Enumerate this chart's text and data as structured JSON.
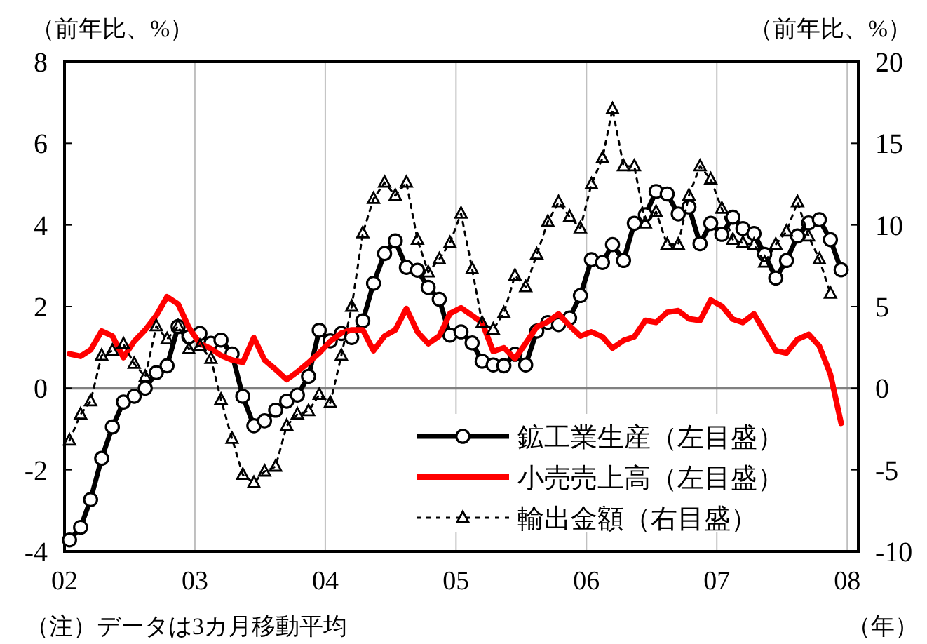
{
  "chart_data": {
    "type": "line",
    "ylabel": "（前年比、%）",
    "y2label": "（前年比、%）",
    "xlabel": "（年）",
    "annotations": [
      "（注）データは3カ月移動平均"
    ],
    "x": [
      "2002-01-15",
      "2002-02-15",
      "2002-03-15",
      "2002-04-15",
      "2002-05-15",
      "2002-06-15",
      "2002-07-15",
      "2002-08-15",
      "2002-09-15",
      "2002-10-15",
      "2002-11-15",
      "2002-12-15",
      "2003-01-15",
      "2003-02-15",
      "2003-03-15",
      "2003-04-15",
      "2003-05-15",
      "2003-06-15",
      "2003-07-15",
      "2003-08-15",
      "2003-09-15",
      "2003-10-15",
      "2003-11-15",
      "2003-12-15",
      "2004-01-15",
      "2004-02-15",
      "2004-03-15",
      "2004-04-15",
      "2004-05-15",
      "2004-06-15",
      "2004-07-15",
      "2004-08-15",
      "2004-09-15",
      "2004-10-15",
      "2004-11-15",
      "2004-12-15",
      "2005-01-15",
      "2005-02-15",
      "2005-03-15",
      "2005-04-15",
      "2005-05-15",
      "2005-06-15",
      "2005-07-15",
      "2005-08-15",
      "2005-09-15",
      "2005-10-15",
      "2005-11-15",
      "2005-12-15",
      "2006-01-15",
      "2006-02-15",
      "2006-03-15",
      "2006-04-15",
      "2006-05-15",
      "2006-06-15",
      "2006-07-15",
      "2006-08-15",
      "2006-09-15",
      "2006-10-15",
      "2006-11-15",
      "2006-12-15",
      "2007-01-15",
      "2007-02-15",
      "2007-03-15",
      "2007-04-15",
      "2007-05-15",
      "2007-06-15",
      "2007-07-15",
      "2007-08-15",
      "2007-09-15",
      "2007-10-15",
      "2007-11-15",
      "2007-12-15"
    ],
    "xlim": [
      "2002-01-01",
      "2008-02-01"
    ],
    "xticks": [
      {
        "value": "2002-01-01",
        "label": "02"
      },
      {
        "value": "2003-01-01",
        "label": "03"
      },
      {
        "value": "2004-01-01",
        "label": "04"
      },
      {
        "value": "2005-01-01",
        "label": "05"
      },
      {
        "value": "2006-01-01",
        "label": "06"
      },
      {
        "value": "2007-01-01",
        "label": "07"
      },
      {
        "value": "2008-01-01",
        "label": "08"
      }
    ],
    "ylim": [
      -4,
      8
    ],
    "yticks": [
      -4,
      -2,
      0,
      2,
      4,
      6,
      8
    ],
    "y2lim": [
      -10,
      20
    ],
    "y2ticks": [
      -10,
      -5,
      0,
      5,
      10,
      15,
      20
    ],
    "grid": "x",
    "legend": "bottom right",
    "ref_lines": [
      {
        "axis": "y",
        "value": 0,
        "color": "#808080"
      }
    ],
    "series": [
      {
        "name": "鉱工業生産（左目盛）",
        "color": "#000000",
        "marker": "circle",
        "line_style": "solid",
        "values": [
          -3.72,
          -3.41,
          -2.73,
          -1.72,
          -0.95,
          -0.34,
          -0.2,
          0.0,
          0.38,
          0.55,
          1.51,
          1.26,
          1.34,
          1.1,
          1.18,
          0.84,
          -0.2,
          -0.92,
          -0.8,
          -0.54,
          -0.32,
          -0.17,
          0.29,
          1.42,
          1.16,
          1.34,
          1.24,
          1.65,
          2.57,
          3.3,
          3.61,
          2.96,
          2.89,
          2.47,
          2.18,
          1.3,
          1.38,
          1.11,
          0.66,
          0.57,
          0.55,
          0.83,
          0.57,
          1.4,
          1.61,
          1.56,
          1.72,
          2.27,
          3.15,
          3.08,
          3.52,
          3.13,
          4.04,
          4.25,
          4.82,
          4.76,
          4.27,
          4.44,
          3.54,
          4.04,
          3.77,
          4.19,
          3.91,
          3.79,
          3.28,
          2.7,
          3.13,
          3.73,
          4.05,
          4.13,
          3.64,
          2.9
        ]
      },
      {
        "name": "小売売上高（左目盛）",
        "color": "#ff0000",
        "marker": "none",
        "line_style": "solid",
        "values": [
          0.84,
          0.78,
          0.94,
          1.4,
          1.28,
          0.75,
          1.15,
          1.43,
          1.78,
          2.24,
          2.06,
          1.49,
          1.09,
          0.97,
          0.8,
          0.69,
          0.63,
          1.24,
          0.69,
          0.46,
          0.21,
          0.4,
          0.63,
          0.86,
          1.15,
          1.35,
          1.43,
          1.43,
          0.92,
          1.28,
          1.43,
          1.95,
          1.38,
          1.09,
          1.28,
          1.83,
          1.97,
          1.78,
          1.61,
          0.9,
          0.99,
          0.72,
          1.1,
          1.5,
          1.63,
          1.82,
          1.53,
          1.28,
          1.38,
          1.26,
          0.98,
          1.17,
          1.26,
          1.66,
          1.61,
          1.86,
          1.9,
          1.7,
          1.66,
          2.16,
          2.01,
          1.69,
          1.61,
          1.82,
          1.38,
          0.92,
          0.86,
          1.2,
          1.32,
          1.03,
          0.34,
          -0.86
        ]
      },
      {
        "name": "輸出金額（右目盛）",
        "color": "#000000",
        "marker": "triangle",
        "line_style": "dotted",
        "axis": "y2",
        "values": [
          -3.2,
          -1.6,
          -0.8,
          2.0,
          2.3,
          2.7,
          1.5,
          0.7,
          3.8,
          3.0,
          3.8,
          2.4,
          2.6,
          1.8,
          -0.7,
          -3.1,
          -5.3,
          -5.8,
          -5.1,
          -4.8,
          -2.3,
          -1.6,
          -1.4,
          -0.4,
          -0.9,
          2.0,
          5.0,
          9.5,
          11.6,
          12.6,
          11.8,
          12.6,
          9.1,
          7.1,
          7.9,
          8.9,
          10.7,
          7.3,
          4.0,
          3.6,
          4.6,
          6.9,
          6.2,
          8.2,
          10.2,
          11.4,
          10.5,
          9.8,
          12.5,
          14.1,
          17.1,
          13.6,
          13.6,
          10.1,
          10.8,
          8.8,
          8.8,
          11.8,
          13.6,
          12.8,
          11.0,
          9.1,
          8.9,
          8.8,
          7.7,
          8.8,
          9.6,
          11.4,
          9.3,
          7.9,
          5.8,
          null
        ]
      }
    ]
  }
}
